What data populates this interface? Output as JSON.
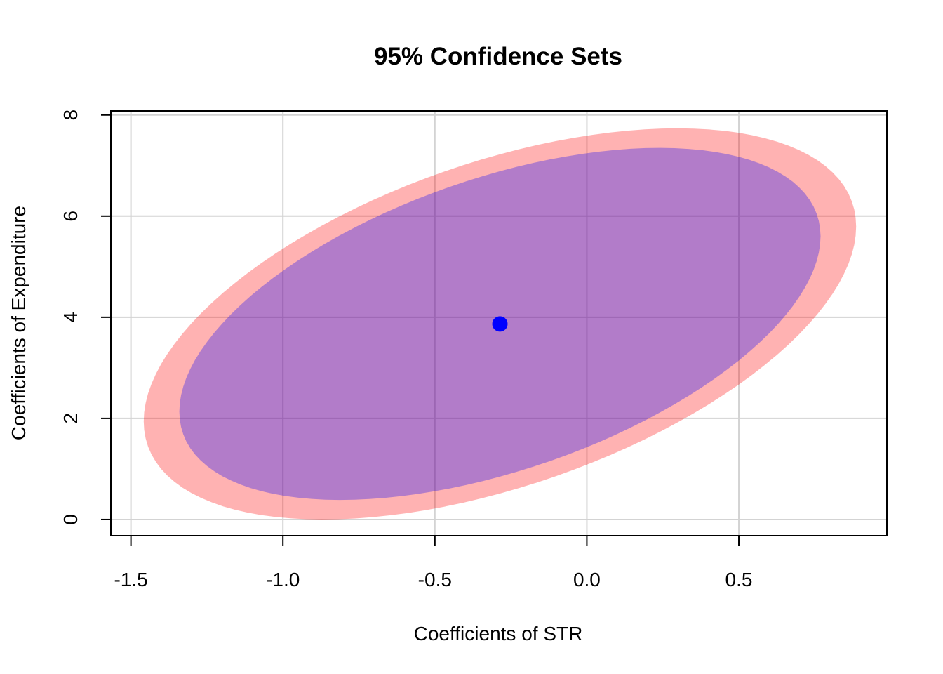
{
  "chart_data": {
    "type": "scatter",
    "title": "95% Confidence Sets",
    "xlabel": "Coefficients of STR",
    "ylabel": "Coefficients of Expenditure",
    "xlim": [
      -1.566,
      0.987
    ],
    "ylim": [
      -0.32,
      8.08
    ],
    "x_ticks": [
      -1.5,
      -1.0,
      -0.5,
      0.0,
      0.5
    ],
    "x_tick_labels": [
      "-1.5",
      "-1.0",
      "-0.5",
      "0.0",
      "0.5"
    ],
    "y_ticks": [
      0,
      2,
      4,
      6,
      8
    ],
    "y_tick_labels": [
      "0",
      "2",
      "4",
      "6",
      "8"
    ],
    "grid": true,
    "point_estimate": {
      "x": -0.286,
      "y": 3.868,
      "color": "#0000ff"
    },
    "regions": [
      {
        "level": "outer",
        "color": "#ff0000",
        "opacity": 0.3,
        "center": [
          -0.286,
          3.868
        ],
        "half_width_x": 1.172,
        "half_height_y": 3.868
      },
      {
        "level": "inner",
        "color": "#0000ff",
        "opacity": 0.3,
        "center": [
          -0.286,
          3.868
        ],
        "half_width_x": 1.172,
        "half_height_y": 3.868,
        "scale": 0.9
      }
    ]
  }
}
